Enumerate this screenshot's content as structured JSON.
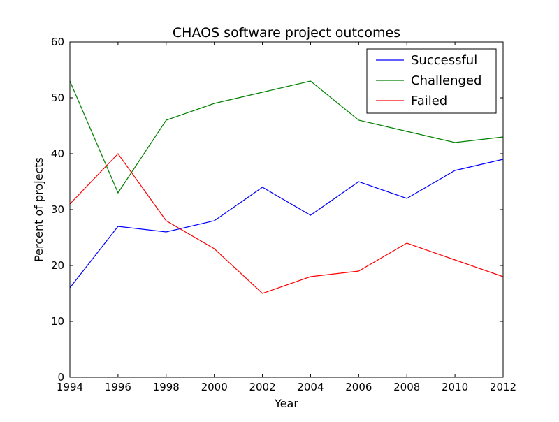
{
  "chart_data": {
    "type": "line",
    "title": "CHAOS software project outcomes",
    "xlabel": "Year",
    "ylabel": "Percent of projects",
    "x": [
      1994,
      1996,
      1998,
      2000,
      2002,
      2004,
      2006,
      2008,
      2010,
      2012
    ],
    "xlim": [
      1994,
      2012
    ],
    "ylim": [
      0,
      60
    ],
    "xticks": [
      "1994",
      "1996",
      "1998",
      "2000",
      "2002",
      "2004",
      "2006",
      "2008",
      "2010",
      "2012"
    ],
    "yticks": [
      "0",
      "10",
      "20",
      "30",
      "40",
      "50",
      "60"
    ],
    "grid": false,
    "legend_position": "top-right",
    "series": [
      {
        "name": "Successful",
        "color": "#0000ff",
        "values": [
          16,
          27,
          26,
          28,
          34,
          29,
          35,
          32,
          37,
          39
        ]
      },
      {
        "name": "Challenged",
        "color": "#008000",
        "values": [
          53,
          33,
          46,
          49,
          51,
          53,
          46,
          44,
          42,
          43
        ]
      },
      {
        "name": "Failed",
        "color": "#ff0000",
        "values": [
          31,
          40,
          28,
          23,
          15,
          18,
          19,
          24,
          21,
          18
        ]
      }
    ]
  }
}
